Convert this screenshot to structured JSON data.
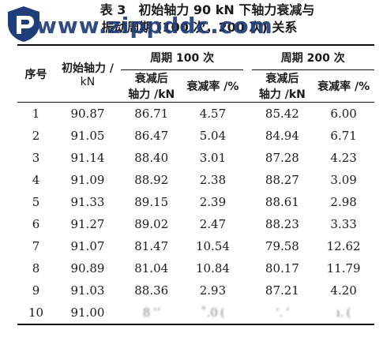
{
  "watermark": "www.zippddc.com",
  "logo_icon": "shield-logo-icon",
  "title_line1": "表 3　初始轴力 90 kN 下轴力衰减与",
  "title_line2": "振动周期 (100 次，200 次) 关系",
  "header": {
    "col_index": "序号",
    "col_initial_line1": "初始轴力 /",
    "col_initial_line2": "kN",
    "group_100": "周期 100 次",
    "group_200": "周期 200 次",
    "axial_after_line1": "衰减后",
    "axial_after_line2": "轴力 /kN",
    "decay_rate": "衰减率 /%"
  },
  "rows": [
    {
      "idx": "1",
      "initial": "90.87",
      "a100": "86.71",
      "r100": "4.57",
      "a200": "85.42",
      "r200": "6.00"
    },
    {
      "idx": "2",
      "initial": "91.05",
      "a100": "86.47",
      "r100": "5.04",
      "a200": "84.94",
      "r200": "6.71"
    },
    {
      "idx": "3",
      "initial": "91.14",
      "a100": "88.40",
      "r100": "3.01",
      "a200": "87.28",
      "r200": "4.23"
    },
    {
      "idx": "4",
      "initial": "91.09",
      "a100": "88.92",
      "r100": "2.38",
      "a200": "88.27",
      "r200": "3.09"
    },
    {
      "idx": "5",
      "initial": "91.33",
      "a100": "89.15",
      "r100": "2.39",
      "a200": "88.61",
      "r200": "2.98"
    },
    {
      "idx": "6",
      "initial": "91.27",
      "a100": "89.02",
      "r100": "2.47",
      "a200": "88.23",
      "r200": "3.33"
    },
    {
      "idx": "7",
      "initial": "91.07",
      "a100": "81.47",
      "r100": "10.54",
      "a200": "79.58",
      "r200": "12.62"
    },
    {
      "idx": "8",
      "initial": "90.89",
      "a100": "81.04",
      "r100": "10.84",
      "a200": "80.17",
      "r200": "11.79"
    },
    {
      "idx": "9",
      "initial": "91.03",
      "a100": "88.36",
      "r100": "2.93",
      "a200": "87.21",
      "r200": "4.20"
    },
    {
      "idx": "10",
      "initial": "91.00",
      "a100": "8 ʼʼ",
      "r100": "˚.0 (",
      "a200": "ʻ. ʼ",
      "r200": "ı. ("
    }
  ]
}
